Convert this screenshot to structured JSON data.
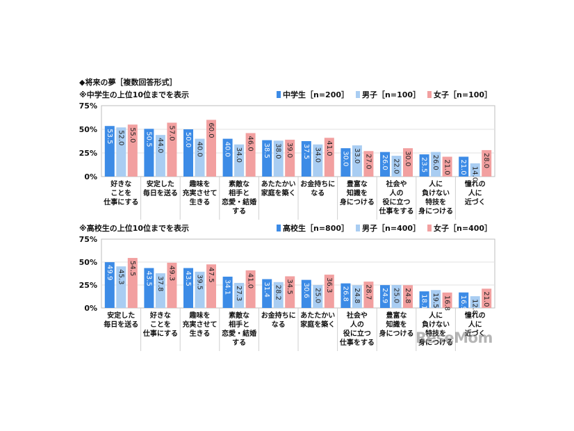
{
  "title": "◆将来の夢［複数回答形式］",
  "watermark": "ReseMom",
  "colors": {
    "s0": "#3C8BE6",
    "s1": "#A9CDF2",
    "s2": "#F2A0A0"
  },
  "chart_data": [
    {
      "type": "bar",
      "subtitle": "※中学生の上位10位までを表示",
      "legend_placement": "top-right",
      "ylim": [
        0,
        75
      ],
      "yticks": [
        "0%",
        "25%",
        "50%",
        "75%"
      ],
      "categories": [
        [
          "好きな",
          "ことを",
          "仕事にする"
        ],
        [
          "安定した",
          "毎日を送る"
        ],
        [
          "趣味を",
          "充実させて",
          "生きる"
        ],
        [
          "素敵な",
          "相手と",
          "恋愛・結婚",
          "する"
        ],
        [
          "あたたかい",
          "家庭を築く"
        ],
        [
          "お金持ちに",
          "なる"
        ],
        [
          "豊富な",
          "知識を",
          "身につける"
        ],
        [
          "社会や",
          "人の",
          "役に立つ",
          "仕事をする"
        ],
        [
          "人に",
          "負けない",
          "特技を",
          "身につける"
        ],
        [
          "憧れの",
          "人に",
          "近づく"
        ]
      ],
      "series": [
        {
          "name": "中学生［n=200］",
          "values": [
            53.5,
            50.5,
            50.0,
            40.0,
            38.5,
            37.5,
            30.0,
            26.0,
            23.5,
            21.0
          ]
        },
        {
          "name": "男子［n=100］",
          "values": [
            52.0,
            44.0,
            40.0,
            34.0,
            38.0,
            34.0,
            33.0,
            22.0,
            26.0,
            14.0
          ]
        },
        {
          "name": "女子［n=100］",
          "values": [
            55.0,
            57.0,
            60.0,
            46.0,
            39.0,
            41.0,
            27.0,
            30.0,
            21.0,
            28.0
          ]
        }
      ]
    },
    {
      "type": "bar",
      "subtitle": "※高校生の上位10位までを表示",
      "legend_placement": "top-right",
      "ylim": [
        0,
        75
      ],
      "yticks": [
        "0%",
        "25%",
        "50%",
        "75%"
      ],
      "categories": [
        [
          "安定した",
          "毎日を送る"
        ],
        [
          "好きな",
          "ことを",
          "仕事にする"
        ],
        [
          "趣味を",
          "充実させて",
          "生きる"
        ],
        [
          "素敵な",
          "相手と",
          "恋愛・結婚",
          "する"
        ],
        [
          "お金持ちに",
          "なる"
        ],
        [
          "あたたかい",
          "家庭を築く"
        ],
        [
          "社会や",
          "人の",
          "役に立つ",
          "仕事をする"
        ],
        [
          "豊富な",
          "知識を",
          "身につける"
        ],
        [
          "人に",
          "負けない",
          "特技を",
          "身につける"
        ],
        [
          "憧れの",
          "人に",
          "近づく"
        ]
      ],
      "series": [
        {
          "name": "高校生［n=800］",
          "values": [
            49.9,
            43.5,
            43.5,
            34.1,
            31.4,
            30.6,
            26.8,
            24.9,
            18.1,
            16.9
          ]
        },
        {
          "name": "男子［n=400］",
          "values": [
            45.3,
            37.8,
            39.5,
            27.3,
            28.2,
            25.0,
            24.8,
            25.0,
            19.5,
            12.8
          ]
        },
        {
          "name": "女子［n=400］",
          "values": [
            54.5,
            49.3,
            47.5,
            41.0,
            34.5,
            36.3,
            28.7,
            24.8,
            16.8,
            21.0
          ]
        }
      ]
    }
  ]
}
